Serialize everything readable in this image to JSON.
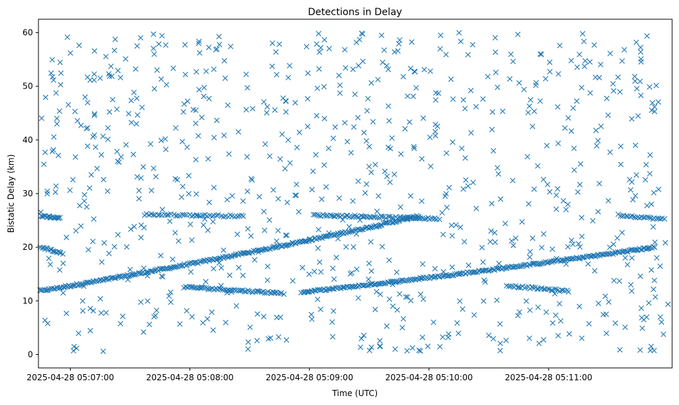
{
  "chart_data": {
    "type": "scatter",
    "title": "Detections in Delay",
    "xlabel": "Time (UTC)",
    "ylabel": "Bistatic Delay (km)",
    "xlim_seconds": [
      -16,
      302
    ],
    "ylim": [
      -2.5,
      62.5
    ],
    "x_ticks": [
      {
        "t": 0,
        "label": "2025-04-28 05:07:00"
      },
      {
        "t": 60,
        "label": "2025-04-28 05:08:00"
      },
      {
        "t": 120,
        "label": "2025-04-28 05:09:00"
      },
      {
        "t": 180,
        "label": "2025-04-28 05:10:00"
      },
      {
        "t": 240,
        "label": "2025-04-28 05:11:00"
      }
    ],
    "y_ticks": [
      0,
      10,
      20,
      30,
      40,
      50,
      60
    ],
    "marker": "x",
    "color": "#1f77b4",
    "grid": false,
    "series": {
      "track_rising_1": {
        "t_start": -16,
        "t_end": 175,
        "d_start": 11.8,
        "d_end": 25.8,
        "count": 280
      },
      "track_rising_2": {
        "t_start": 116,
        "t_end": 293,
        "d_start": 11.6,
        "d_end": 20.0,
        "count": 260
      },
      "track_flat_26a": {
        "t_start": -16,
        "t_end": -5,
        "d_start": 25.9,
        "d_end": 25.4,
        "count": 20
      },
      "track_flat_26b": {
        "t_start": 37,
        "t_end": 87,
        "d_start": 26.1,
        "d_end": 25.8,
        "count": 45
      },
      "track_flat_26c": {
        "t_start": 122,
        "t_end": 185,
        "d_start": 26.0,
        "d_end": 25.3,
        "count": 70
      },
      "track_flat_26d": {
        "t_start": 275,
        "t_end": 298,
        "d_start": 26.0,
        "d_end": 25.2,
        "count": 25
      },
      "track_falling_20": {
        "t_start": -17,
        "t_end": -4,
        "d_start": 20.3,
        "d_end": 18.8,
        "count": 20
      },
      "track_falling_12a": {
        "t_start": 57,
        "t_end": 107,
        "d_start": 12.6,
        "d_end": 11.4,
        "count": 60
      },
      "track_falling_12b": {
        "t_start": 220,
        "t_end": 250,
        "d_start": 12.8,
        "d_end": 11.8,
        "count": 35
      },
      "noise": {
        "t_range": [
          -17,
          300
        ],
        "d_range": [
          0.5,
          60
        ],
        "count": 800,
        "seed": 12345
      }
    }
  }
}
